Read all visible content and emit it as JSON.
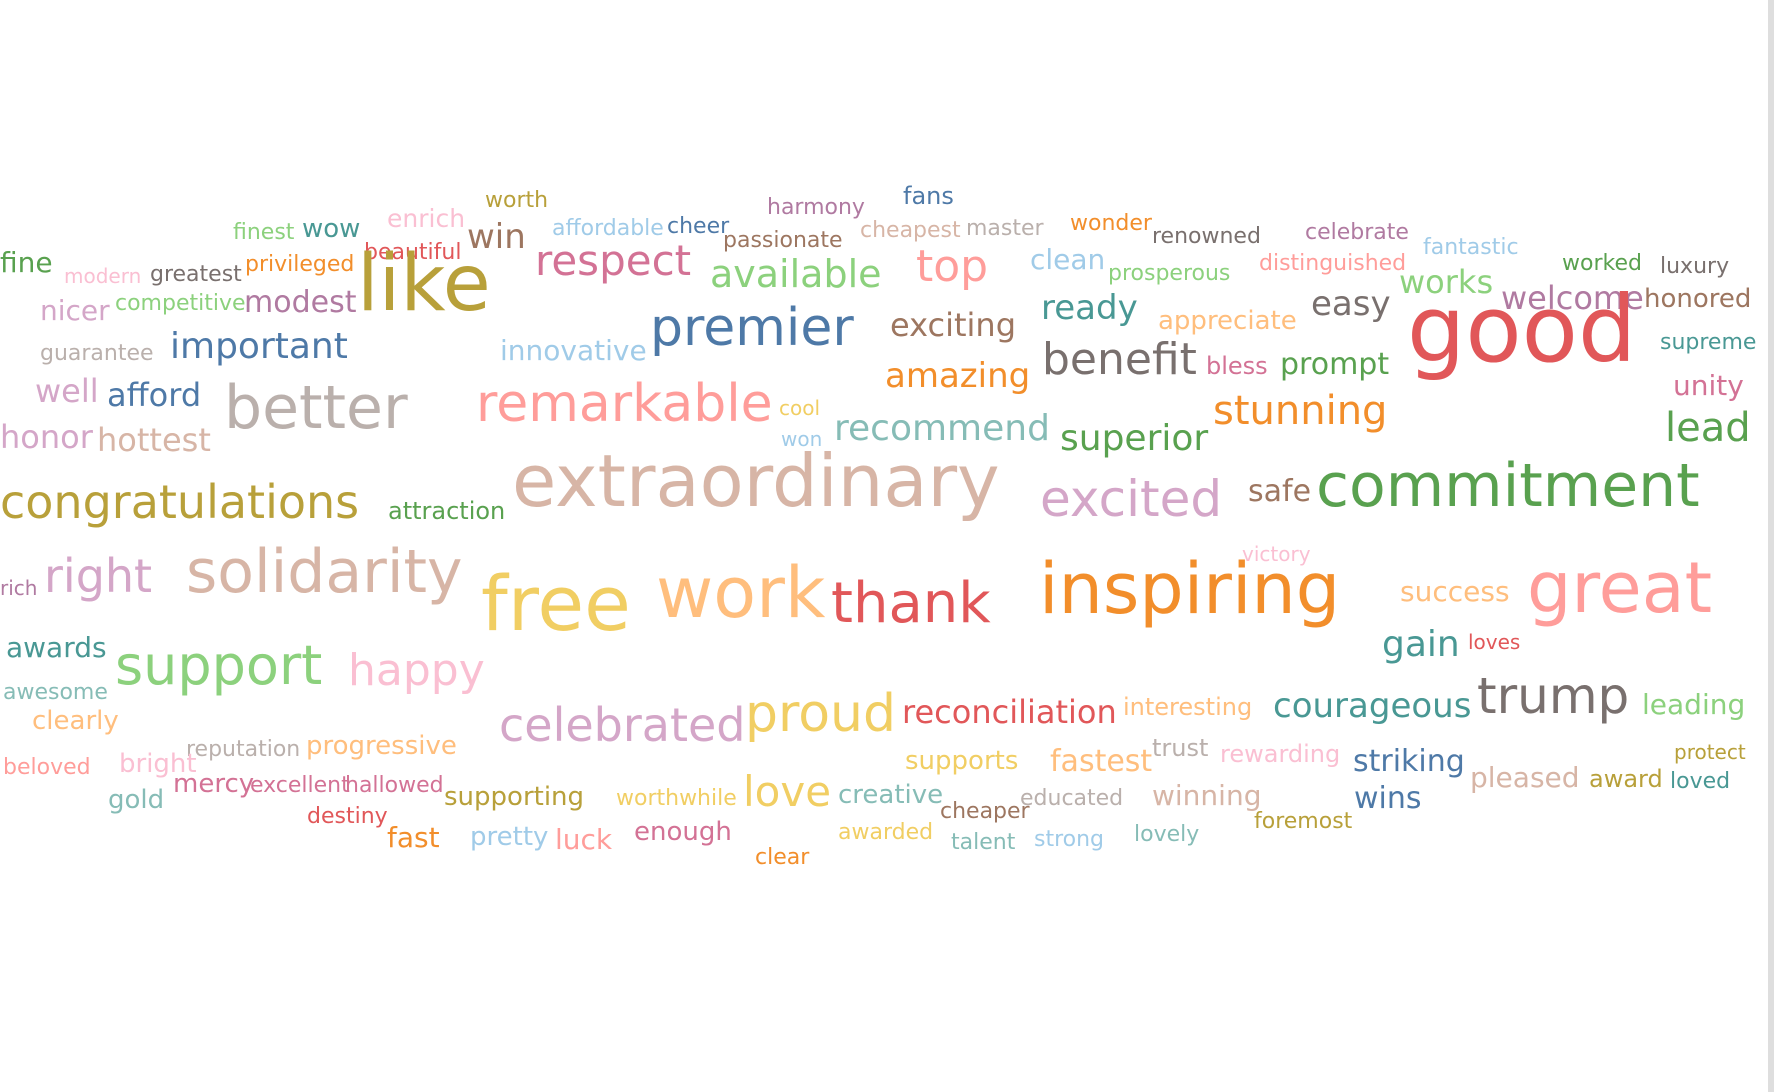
{
  "palette": {
    "olive": "#b8a03a",
    "blue": "#4e79a7",
    "teal": "#499894",
    "green": "#59a14f",
    "lightgreen": "#8cd17d",
    "pink": "#d37295",
    "lightpink": "#fabfd2",
    "red": "#e15759",
    "salmon": "#ff9d9a",
    "orange": "#f28e2b",
    "lightorange": "#ffbe7d",
    "yellow": "#f1ce63",
    "brown": "#9d7660",
    "tan": "#d7b5a6",
    "gray": "#79706e",
    "lightgray": "#bab0ac",
    "purple": "#b07aa1",
    "lavender": "#d4a6c8",
    "lightblue": "#a0cbe8",
    "lightteal": "#86bcb6"
  },
  "words": [
    {
      "text": "worth",
      "color": "olive"
    },
    {
      "text": "fans",
      "color": "blue"
    },
    {
      "text": "harmony",
      "color": "purple"
    },
    {
      "text": "finest",
      "color": "lightgreen"
    },
    {
      "text": "wow",
      "color": "teal"
    },
    {
      "text": "enrich",
      "color": "lightpink"
    },
    {
      "text": "affordable",
      "color": "lightblue"
    },
    {
      "text": "cheer",
      "color": "blue"
    },
    {
      "text": "cheapest",
      "color": "tan"
    },
    {
      "text": "master",
      "color": "lightgray"
    },
    {
      "text": "wonder",
      "color": "orange"
    },
    {
      "text": "celebrate",
      "color": "purple"
    },
    {
      "text": "passionate",
      "color": "brown"
    },
    {
      "text": "renowned",
      "color": "gray"
    },
    {
      "text": "fantastic",
      "color": "lightblue"
    },
    {
      "text": "beautiful",
      "color": "red"
    },
    {
      "text": "win",
      "color": "brown"
    },
    {
      "text": "fine",
      "color": "green"
    },
    {
      "text": "modern",
      "color": "lightpink"
    },
    {
      "text": "greatest",
      "color": "gray"
    },
    {
      "text": "privileged",
      "color": "orange"
    },
    {
      "text": "clean",
      "color": "lightblue"
    },
    {
      "text": "prosperous",
      "color": "lightgreen"
    },
    {
      "text": "distinguished",
      "color": "salmon"
    },
    {
      "text": "worked",
      "color": "green"
    },
    {
      "text": "luxury",
      "color": "gray"
    },
    {
      "text": "respect",
      "color": "pink"
    },
    {
      "text": "available",
      "color": "lightgreen"
    },
    {
      "text": "top",
      "color": "salmon"
    },
    {
      "text": "works",
      "color": "lightgreen"
    },
    {
      "text": "nicer",
      "color": "lavender"
    },
    {
      "text": "competitive",
      "color": "lightgreen"
    },
    {
      "text": "modest",
      "color": "purple"
    },
    {
      "text": "like",
      "color": "olive"
    },
    {
      "text": "welcome",
      "color": "purple"
    },
    {
      "text": "honored",
      "color": "brown"
    },
    {
      "text": "easy",
      "color": "gray"
    },
    {
      "text": "ready",
      "color": "teal"
    },
    {
      "text": "appreciate",
      "color": "lightorange"
    },
    {
      "text": "exciting",
      "color": "brown"
    },
    {
      "text": "guarantee",
      "color": "lightgray"
    },
    {
      "text": "important",
      "color": "blue"
    },
    {
      "text": "premier",
      "color": "blue"
    },
    {
      "text": "innovative",
      "color": "lightblue"
    },
    {
      "text": "supreme",
      "color": "teal"
    },
    {
      "text": "bless",
      "color": "pink"
    },
    {
      "text": "prompt",
      "color": "green"
    },
    {
      "text": "benefit",
      "color": "gray"
    },
    {
      "text": "amazing",
      "color": "orange"
    },
    {
      "text": "good",
      "color": "red"
    },
    {
      "text": "unity",
      "color": "pink"
    },
    {
      "text": "well",
      "color": "lavender"
    },
    {
      "text": "afford",
      "color": "blue"
    },
    {
      "text": "cool",
      "color": "yellow"
    },
    {
      "text": "stunning",
      "color": "orange"
    },
    {
      "text": "lead",
      "color": "green"
    },
    {
      "text": "won",
      "color": "lightblue"
    },
    {
      "text": "honor",
      "color": "lavender"
    },
    {
      "text": "hottest",
      "color": "tan"
    },
    {
      "text": "better",
      "color": "lightgray"
    },
    {
      "text": "remarkable",
      "color": "salmon"
    },
    {
      "text": "recommend",
      "color": "lightteal"
    },
    {
      "text": "superior",
      "color": "green"
    },
    {
      "text": "safe",
      "color": "brown"
    },
    {
      "text": "attraction",
      "color": "green"
    },
    {
      "text": "congratulations",
      "color": "olive"
    },
    {
      "text": "extraordinary",
      "color": "tan"
    },
    {
      "text": "excited",
      "color": "lavender"
    },
    {
      "text": "commitment",
      "color": "green"
    },
    {
      "text": "victory",
      "color": "lightpink"
    },
    {
      "text": "rich",
      "color": "purple"
    },
    {
      "text": "right",
      "color": "lavender"
    },
    {
      "text": "solidarity",
      "color": "tan"
    },
    {
      "text": "success",
      "color": "lightorange"
    },
    {
      "text": "awards",
      "color": "teal"
    },
    {
      "text": "thank",
      "color": "red"
    },
    {
      "text": "inspiring",
      "color": "orange"
    },
    {
      "text": "loves",
      "color": "red"
    },
    {
      "text": "great",
      "color": "salmon"
    },
    {
      "text": "free",
      "color": "yellow"
    },
    {
      "text": "work",
      "color": "lightorange"
    },
    {
      "text": "gain",
      "color": "teal"
    },
    {
      "text": "awesome",
      "color": "lightteal"
    },
    {
      "text": "support",
      "color": "lightgreen"
    },
    {
      "text": "happy",
      "color": "lightpink"
    },
    {
      "text": "interesting",
      "color": "lightorange"
    },
    {
      "text": "leading",
      "color": "lightgreen"
    },
    {
      "text": "clearly",
      "color": "lightorange"
    },
    {
      "text": "reconciliation",
      "color": "red"
    },
    {
      "text": "courageous",
      "color": "teal"
    },
    {
      "text": "trump",
      "color": "gray"
    },
    {
      "text": "protect",
      "color": "olive"
    },
    {
      "text": "reputation",
      "color": "lightgray"
    },
    {
      "text": "progressive",
      "color": "lightorange"
    },
    {
      "text": "celebrated",
      "color": "lavender"
    },
    {
      "text": "proud",
      "color": "yellow"
    },
    {
      "text": "trust",
      "color": "lightgray"
    },
    {
      "text": "rewarding",
      "color": "lightpink"
    },
    {
      "text": "beloved",
      "color": "salmon"
    },
    {
      "text": "bright",
      "color": "lightpink"
    },
    {
      "text": "supports",
      "color": "yellow"
    },
    {
      "text": "fastest",
      "color": "lightorange"
    },
    {
      "text": "striking",
      "color": "blue"
    },
    {
      "text": "pleased",
      "color": "tan"
    },
    {
      "text": "award",
      "color": "olive"
    },
    {
      "text": "loved",
      "color": "teal"
    },
    {
      "text": "mercy",
      "color": "pink"
    },
    {
      "text": "excellent",
      "color": "pink"
    },
    {
      "text": "hallowed",
      "color": "pink"
    },
    {
      "text": "gold",
      "color": "lightteal"
    },
    {
      "text": "creative",
      "color": "lightteal"
    },
    {
      "text": "educated",
      "color": "lightgray"
    },
    {
      "text": "supporting",
      "color": "olive"
    },
    {
      "text": "worthwhile",
      "color": "yellow"
    },
    {
      "text": "love",
      "color": "yellow"
    },
    {
      "text": "cheaper",
      "color": "brown"
    },
    {
      "text": "winning",
      "color": "tan"
    },
    {
      "text": "wins",
      "color": "blue"
    },
    {
      "text": "foremost",
      "color": "olive"
    },
    {
      "text": "destiny",
      "color": "red"
    },
    {
      "text": "fast",
      "color": "orange"
    },
    {
      "text": "pretty",
      "color": "lightblue"
    },
    {
      "text": "luck",
      "color": "salmon"
    },
    {
      "text": "enough",
      "color": "pink"
    },
    {
      "text": "awarded",
      "color": "yellow"
    },
    {
      "text": "talent",
      "color": "lightteal"
    },
    {
      "text": "strong",
      "color": "lightblue"
    },
    {
      "text": "lovely",
      "color": "lightteal"
    },
    {
      "text": "clear",
      "color": "orange"
    }
  ]
}
